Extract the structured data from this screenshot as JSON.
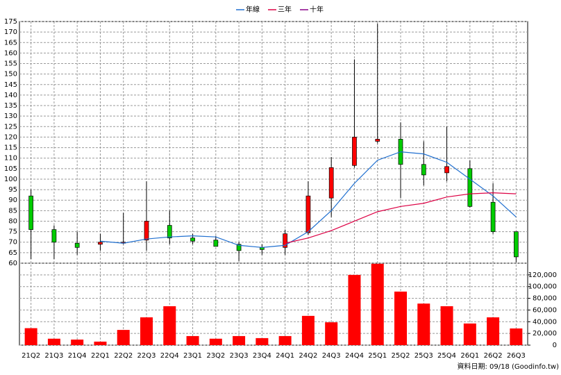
{
  "chart_data": {
    "type": "candlestick",
    "categories": [
      "21Q2",
      "21Q3",
      "21Q4",
      "22Q1",
      "22Q2",
      "22Q3",
      "22Q4",
      "23Q1",
      "23Q2",
      "23Q3",
      "23Q4",
      "24Q1",
      "24Q2",
      "24Q3",
      "24Q4",
      "25Q1",
      "25Q2",
      "25Q3",
      "25Q4",
      "26Q1",
      "26Q2",
      "26Q3"
    ],
    "open": [
      92,
      76,
      69.5,
      69,
      69.5,
      71,
      78,
      72,
      71,
      69,
      67.5,
      67.5,
      74.5,
      91,
      106.5,
      118,
      119,
      107,
      103,
      105,
      89,
      75
    ],
    "close": [
      76,
      70,
      67.5,
      70,
      70,
      80,
      72,
      70.5,
      68,
      66,
      66.5,
      74,
      92,
      105.5,
      120,
      119,
      107,
      102,
      106,
      87,
      75,
      63
    ],
    "high": [
      95,
      78,
      75,
      74,
      84,
      99,
      85,
      74,
      73,
      70,
      69,
      76,
      99,
      110.5,
      157,
      174,
      127,
      118,
      125,
      109,
      98,
      75
    ],
    "low": [
      62,
      62,
      64,
      66,
      69,
      66,
      69,
      69,
      68,
      61,
      64,
      64,
      73.5,
      82,
      105.5,
      117,
      91,
      97,
      99,
      86.5,
      74,
      60.5
    ],
    "up_color": "#ff0000",
    "down_color": "#00cc00",
    "series": [
      {
        "name": "年線",
        "color": "#1f6fd0",
        "values": [
          null,
          null,
          null,
          70.5,
          69.5,
          71.5,
          72.5,
          73,
          72.5,
          68.5,
          67.5,
          68.5,
          75,
          85,
          98,
          109,
          113,
          112,
          108,
          100,
          92,
          82
        ]
      },
      {
        "name": "三年",
        "color": "#dd0044",
        "values": [
          null,
          null,
          null,
          null,
          null,
          null,
          null,
          null,
          null,
          null,
          null,
          69.5,
          72,
          75.5,
          80,
          84.5,
          87,
          88.5,
          91.5,
          93,
          93.5,
          93
        ]
      },
      {
        "name": "十年",
        "color": "#880088",
        "values": [
          null,
          null,
          null,
          null,
          null,
          null,
          null,
          null,
          null,
          null,
          null,
          null,
          null,
          null,
          null,
          null,
          null,
          null,
          null,
          null,
          null,
          null
        ]
      }
    ],
    "volume": {
      "axis": "y2",
      "color": "#ff0000",
      "values": [
        29000,
        11000,
        9500,
        6000,
        26000,
        47500,
        66500,
        15500,
        11000,
        15500,
        12000,
        15500,
        50000,
        39000,
        120000,
        139000,
        91500,
        71000,
        66500,
        37000,
        47500,
        28500
      ]
    },
    "ylim": [
      60,
      175
    ],
    "yticks": [
      60,
      65,
      70,
      75,
      80,
      85,
      90,
      95,
      100,
      105,
      110,
      115,
      120,
      125,
      130,
      135,
      140,
      145,
      150,
      155,
      160,
      165,
      170,
      175
    ],
    "y2lim": [
      0,
      140000
    ],
    "y2ticks": [
      0,
      {
        "value": 20000,
        "label": "20,000"
      },
      {
        "value": 40000,
        "label": "40,000"
      },
      {
        "value": 60000,
        "label": "60,000"
      },
      {
        "value": 80000,
        "label": "80,000"
      },
      {
        "value": 100000,
        "label": "100,000"
      },
      {
        "value": 120000,
        "label": "120,000"
      }
    ],
    "grid": true,
    "legend": "top",
    "source": "資料日期: 09/18 (Goodinfo.tw)"
  }
}
